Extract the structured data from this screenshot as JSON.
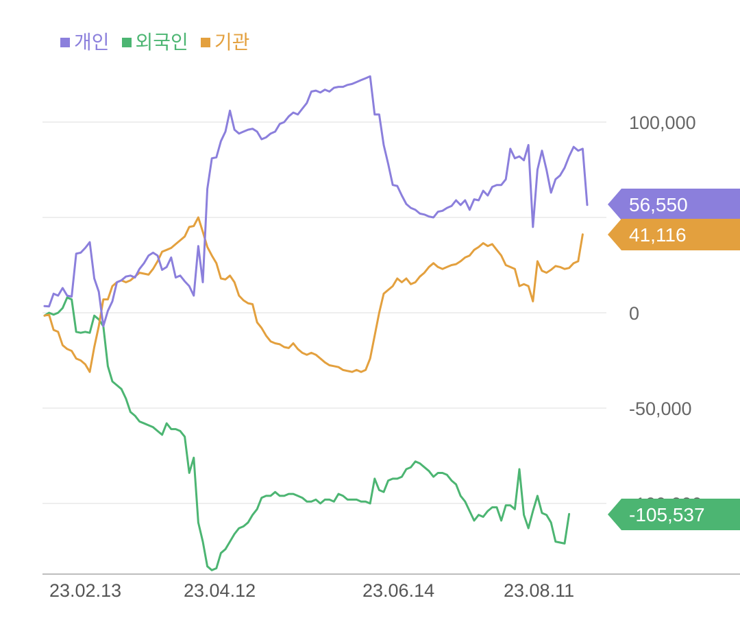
{
  "legend": [
    {
      "label": "개인",
      "color": "#8b7fdc"
    },
    {
      "label": "외국인",
      "color": "#4cb572"
    },
    {
      "label": "기관",
      "color": "#e3a03e"
    }
  ],
  "chart_data": {
    "type": "line",
    "xlabel": "",
    "ylabel": "",
    "ylim": [
      -137000,
      125000
    ],
    "x_ticks": [
      "23.02.13",
      "23.04.12",
      "23.06.14",
      "23.08.11"
    ],
    "y_ticks": [
      {
        "value": 100000,
        "label": "100,000"
      },
      {
        "value": 50000,
        "label": ""
      },
      {
        "value": 0,
        "label": "0"
      },
      {
        "value": -50000,
        "label": "-50,000"
      },
      {
        "value": -100000,
        "label": "-100,000"
      }
    ],
    "grid": true,
    "legend_position": "top-left",
    "end_labels": [
      "56,550",
      "41,116",
      "-105,537"
    ],
    "series": [
      {
        "name": "개인",
        "color": "#8b7fdc",
        "end_label": "56,550",
        "values": [
          3500,
          3300,
          10000,
          9000,
          13000,
          9000,
          8500,
          31000,
          31500,
          34000,
          37000,
          18000,
          11000,
          -7000,
          1000,
          6000,
          16000,
          17000,
          19000,
          19500,
          18500,
          23000,
          26000,
          30000,
          31500,
          30000,
          22500,
          24000,
          29000,
          18500,
          19500,
          16500,
          14000,
          9000,
          35000,
          16000,
          65000,
          81000,
          81500,
          90000,
          95000,
          106000,
          96000,
          94000,
          95000,
          96000,
          96500,
          95000,
          91000,
          92000,
          94000,
          95000,
          99000,
          100000,
          103000,
          105000,
          104000,
          107000,
          110000,
          116000,
          116500,
          115500,
          117000,
          116000,
          118000,
          118500,
          118500,
          119500,
          120000,
          121000,
          122000,
          123000,
          124000,
          104000,
          104000,
          88000,
          78000,
          67000,
          66500,
          61500,
          57000,
          55000,
          54000,
          52000,
          51500,
          50500,
          50000,
          53000,
          53500,
          55000,
          56000,
          59000,
          56500,
          59000,
          54000,
          59500,
          59000,
          64000,
          61500,
          66000,
          67000,
          67000,
          70000,
          86000,
          81000,
          82000,
          80000,
          88000,
          45000,
          75000,
          85000,
          75000,
          63000,
          70000,
          72000,
          76000,
          82000,
          87000,
          85000,
          86000,
          56550
        ]
      },
      {
        "name": "외국인",
        "color": "#4cb572",
        "end_label": "-105,537",
        "values": [
          -1500,
          0,
          -1000,
          0,
          2500,
          8000,
          7000,
          -10000,
          -10500,
          -10000,
          -10500,
          -1500,
          -3500,
          -7000,
          -28000,
          -36000,
          -38000,
          -40000,
          -45000,
          -52000,
          -54000,
          -57000,
          -58000,
          -59000,
          -60000,
          -62000,
          -64000,
          -58000,
          -61000,
          -61000,
          -62000,
          -65000,
          -84000,
          -76000,
          -110000,
          -120000,
          -133000,
          -135000,
          -134000,
          -126000,
          -124000,
          -120000,
          -116000,
          -113000,
          -112000,
          -110000,
          -106000,
          -103000,
          -97000,
          -96000,
          -96000,
          -94000,
          -96000,
          -96000,
          -95000,
          -95000,
          -96000,
          -97000,
          -99000,
          -99000,
          -98000,
          -100000,
          -98000,
          -98000,
          -99000,
          -95000,
          -96000,
          -98000,
          -98000,
          -98000,
          -99000,
          -99000,
          -100000,
          -87000,
          -93000,
          -94000,
          -88000,
          -87000,
          -87000,
          -86000,
          -82000,
          -81000,
          -78000,
          -79000,
          -81000,
          -83000,
          -86000,
          -84000,
          -84000,
          -85000,
          -88000,
          -90000,
          -96000,
          -99000,
          -104000,
          -109000,
          -106000,
          -107000,
          -104000,
          -102000,
          -102000,
          -109000,
          -101000,
          -101000,
          -103000,
          -82000,
          -106000,
          -113000,
          -104000,
          -96000,
          -105000,
          -106000,
          -110000,
          -120000,
          -120500,
          -121000,
          -105537
        ]
      },
      {
        "name": "기관",
        "color": "#e3a03e",
        "end_label": "41,116",
        "values": [
          -1500,
          -1000,
          -9000,
          -10000,
          -17000,
          -19000,
          -20000,
          -24000,
          -25000,
          -27000,
          -31000,
          -18000,
          -7000,
          7000,
          7000,
          14000,
          16000,
          17000,
          16000,
          17000,
          19000,
          21000,
          20500,
          20000,
          23000,
          27000,
          32000,
          33000,
          34000,
          36000,
          38000,
          40000,
          45000,
          45500,
          50000,
          42500,
          34500,
          30000,
          26000,
          18000,
          17500,
          19500,
          16000,
          9000,
          6500,
          5000,
          4500,
          -5000,
          -8000,
          -12000,
          -15000,
          -16000,
          -16500,
          -18000,
          -18500,
          -16000,
          -19000,
          -21000,
          -22000,
          -21000,
          -22000,
          -24000,
          -26000,
          -27500,
          -28000,
          -28500,
          -30000,
          -30500,
          -31000,
          -30000,
          -31000,
          -30000,
          -24000,
          -12000,
          0,
          10000,
          12000,
          14000,
          18000,
          16000,
          18000,
          15000,
          16000,
          19000,
          21000,
          24000,
          26000,
          24000,
          23000,
          24000,
          25000,
          25500,
          27000,
          29000,
          30000,
          33000,
          34500,
          36500,
          35000,
          36000,
          33000,
          30000,
          25000,
          24000,
          23000,
          14000,
          15000,
          14000,
          6000,
          27000,
          22000,
          21000,
          22500,
          24500,
          24000,
          23000,
          23500,
          26000,
          27000,
          41116
        ]
      }
    ]
  }
}
